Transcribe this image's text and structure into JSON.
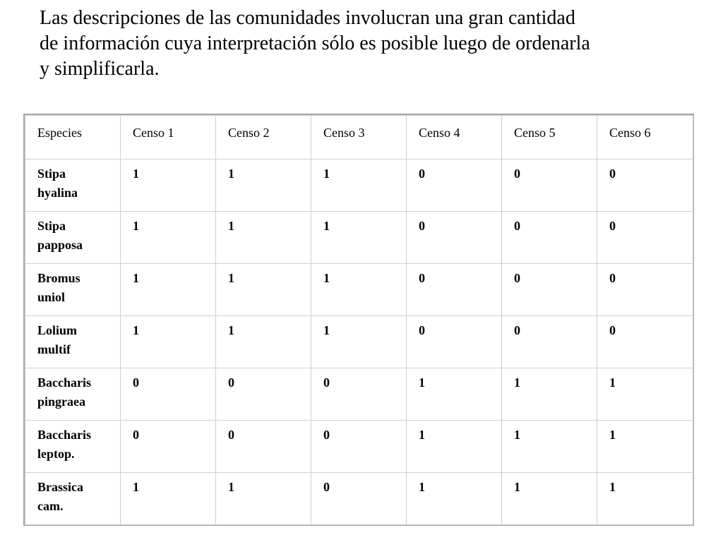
{
  "title": {
    "lines": [
      "Las descripciones de las comunidades involucran una gran cantidad",
      "de información cuya interpretación sólo es posible luego de ordenarla",
      "y simplificarla."
    ]
  },
  "table": {
    "headers": [
      "Especies",
      "Censo 1",
      "Censo 2",
      "Censo 3",
      "Censo 4",
      "Censo 5",
      "Censo 6"
    ],
    "rows": [
      {
        "species": [
          "Stipa",
          "hyalina"
        ],
        "values": [
          "1",
          "1",
          "1",
          "0",
          "0",
          "0"
        ]
      },
      {
        "species": [
          "Stipa",
          "papposa"
        ],
        "values": [
          "1",
          "1",
          "1",
          "0",
          "0",
          "0"
        ]
      },
      {
        "species": [
          "Bromus",
          "uniol"
        ],
        "values": [
          "1",
          "1",
          "1",
          "0",
          "0",
          "0"
        ]
      },
      {
        "species": [
          "Lolium",
          "multif"
        ],
        "values": [
          "1",
          "1",
          "1",
          "0",
          "0",
          "0"
        ]
      },
      {
        "species": [
          "Baccharis",
          "pingraea"
        ],
        "values": [
          "0",
          "0",
          "0",
          "1",
          "1",
          "1"
        ]
      },
      {
        "species": [
          "Baccharis",
          "leptop."
        ],
        "values": [
          "0",
          "0",
          "0",
          "1",
          "1",
          "1"
        ]
      },
      {
        "species": [
          "Brassica",
          "cam."
        ],
        "values": [
          "1",
          "1",
          "0",
          "1",
          "1",
          "1"
        ]
      }
    ]
  }
}
